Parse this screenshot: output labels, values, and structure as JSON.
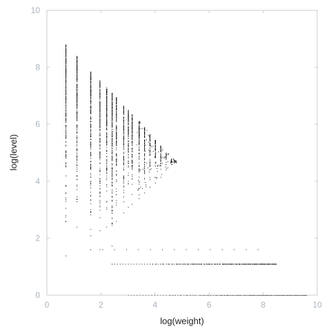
{
  "chart_data": {
    "type": "scatter",
    "title": "",
    "xlabel": "log(weight)",
    "ylabel": "log(level)",
    "xlim": [
      0,
      10
    ],
    "ylim": [
      0,
      10
    ],
    "xticks": [
      "0",
      "2",
      "4",
      "6",
      "8",
      "10"
    ],
    "yticks": [
      "0",
      "2",
      "4",
      "6",
      "8",
      "10"
    ],
    "grid": false,
    "legend": "none",
    "colors": {
      "points": "#111111",
      "frame": "#c7cdd3",
      "tick_labels": "#a9b3bd"
    },
    "columns": [
      {
        "x": 0.69,
        "ymin": 1.39,
        "ymax": 8.8
      },
      {
        "x": 1.1,
        "ymin": 2.4,
        "ymax": 8.4
      },
      {
        "x": 1.61,
        "ymin": 1.61,
        "ymax": 7.85
      },
      {
        "x": 1.95,
        "ymin": 1.61,
        "ymax": 7.55
      },
      {
        "x": 2.2,
        "ymin": 2.4,
        "ymax": 7.3
      },
      {
        "x": 2.4,
        "ymin": 1.1,
        "ymax": 7.1
      },
      {
        "x": 2.56,
        "ymin": 2.6,
        "ymax": 6.95
      },
      {
        "x": 2.83,
        "ymin": 2.9,
        "ymax": 6.65
      },
      {
        "x": 3.0,
        "ymin": 3.1,
        "ymax": 6.5
      },
      {
        "x": 3.14,
        "ymin": 3.2,
        "ymax": 6.35
      },
      {
        "x": 3.4,
        "ymin": 3.4,
        "ymax": 6.1
      },
      {
        "x": 3.6,
        "ymin": 3.6,
        "ymax": 5.9
      },
      {
        "x": 3.8,
        "ymin": 3.8,
        "ymax": 5.65
      },
      {
        "x": 4.0,
        "ymin": 3.95,
        "ymax": 5.45
      },
      {
        "x": 4.2,
        "ymin": 4.15,
        "ymax": 5.25
      },
      {
        "x": 4.4,
        "ymin": 4.4,
        "ymax": 5.0
      },
      {
        "x": 4.6,
        "ymin": 4.6,
        "ymax": 4.8
      },
      {
        "x": 4.7,
        "ymin": 4.65,
        "ymax": 4.75
      }
    ],
    "bands": [
      {
        "y": 1.61,
        "xmin": 1.61,
        "xmax": 7.8,
        "density": "sparse"
      },
      {
        "y": 1.1,
        "xmin": 2.4,
        "xmax": 8.4,
        "density": "increasing"
      },
      {
        "y": 0.0,
        "xmin": 3.0,
        "xmax": 9.5,
        "density": "increasing"
      }
    ]
  }
}
